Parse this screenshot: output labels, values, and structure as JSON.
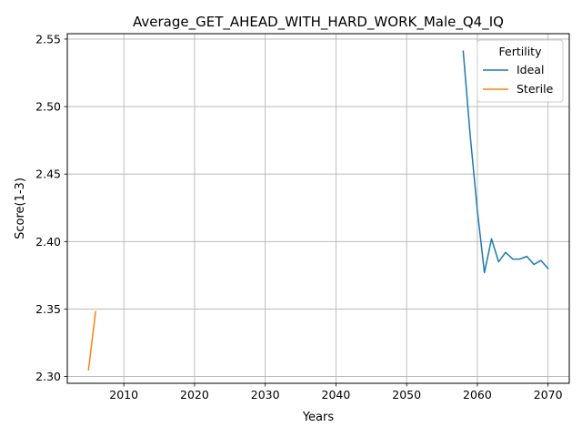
{
  "chart_data": {
    "type": "line",
    "title": "Average_GET_AHEAD_WITH_HARD_WORK_Male_Q4_IQ",
    "xlabel": "Years",
    "ylabel": "Score(1-3)",
    "xlim": [
      2002,
      2073
    ],
    "ylim": [
      2.295,
      2.554
    ],
    "xticks": [
      2010,
      2020,
      2030,
      2040,
      2050,
      2060,
      2070
    ],
    "yticks": [
      2.3,
      2.35,
      2.4,
      2.45,
      2.5,
      2.55
    ],
    "ytick_labels": [
      "2.30",
      "2.35",
      "2.40",
      "2.45",
      "2.50",
      "2.55"
    ],
    "grid": true,
    "legend": {
      "title": "Fertility",
      "placement": "top-right"
    },
    "series": [
      {
        "name": "Ideal",
        "color": "#1f77b4",
        "x": [
          2058,
          2059,
          2060,
          2061,
          2062,
          2063,
          2064,
          2065,
          2066,
          2067,
          2068,
          2069,
          2070
        ],
        "y": [
          2.541,
          2.478,
          2.423,
          2.377,
          2.402,
          2.385,
          2.392,
          2.387,
          2.387,
          2.389,
          2.383,
          2.386,
          2.38
        ]
      },
      {
        "name": "Sterile",
        "color": "#ff7f0e",
        "x": [
          2005,
          2006
        ],
        "y": [
          2.305,
          2.348
        ]
      }
    ]
  }
}
